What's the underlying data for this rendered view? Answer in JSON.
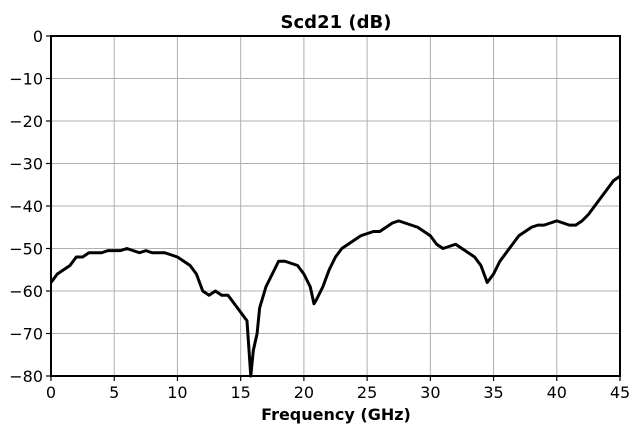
{
  "chart_data": {
    "type": "line",
    "title": "Scd21 (dB)",
    "xlabel": "Frequency (GHz)",
    "x": [
      0,
      0.5,
      1,
      1.5,
      2,
      2.5,
      3,
      3.5,
      4,
      4.5,
      5,
      5.5,
      6,
      6.5,
      7,
      7.5,
      8,
      8.5,
      9,
      9.5,
      10,
      10.5,
      11,
      11.5,
      12,
      12.5,
      13,
      13.5,
      14,
      14.5,
      15,
      15.5,
      15.8,
      16,
      16.3,
      16.5,
      17,
      17.5,
      18,
      18.5,
      19,
      19.5,
      20,
      20.5,
      20.8,
      21,
      21.5,
      22,
      22.5,
      23,
      23.5,
      24,
      24.5,
      25,
      25.5,
      26,
      26.5,
      27,
      27.5,
      28,
      28.5,
      29,
      29.5,
      30,
      30.5,
      31,
      31.5,
      32,
      32.5,
      33,
      33.5,
      34,
      34.5,
      35,
      35.5,
      36,
      36.5,
      37,
      37.5,
      38,
      38.5,
      39,
      39.5,
      40,
      40.5,
      41,
      41.5,
      42,
      42.5,
      43,
      43.5,
      44,
      44.5,
      45
    ],
    "series": [
      {
        "name": "Scd21",
        "color": "#000000",
        "values": [
          -58,
          -56,
          -55,
          -54,
          -52,
          -52,
          -51,
          -51,
          -51,
          -50.5,
          -50.5,
          -50.5,
          -50,
          -50.5,
          -51,
          -50.5,
          -51,
          -51,
          -51,
          -51.5,
          -52,
          -53,
          -54,
          -56,
          -60,
          -61,
          -60,
          -61,
          -61,
          -63,
          -65,
          -67,
          -80,
          -74,
          -70,
          -64,
          -59,
          -56,
          -53,
          -53,
          -53.5,
          -54,
          -56,
          -59,
          -63,
          -62,
          -59,
          -55,
          -52,
          -50,
          -49,
          -48,
          -47,
          -46.5,
          -46,
          -46,
          -45,
          -44,
          -43.5,
          -44,
          -44.5,
          -45,
          -46,
          -47,
          -49,
          -50,
          -49.5,
          -49,
          -50,
          -51,
          -52,
          -54,
          -58,
          -56,
          -53,
          -51,
          -49,
          -47,
          -46,
          -45,
          -44.5,
          -44.5,
          -44,
          -43.5,
          -44,
          -44.5,
          -44.5,
          -43.5,
          -42,
          -40,
          -38,
          -36,
          -34,
          -33
        ]
      }
    ],
    "xlim": [
      0,
      45
    ],
    "xticks": [
      0,
      5,
      10,
      15,
      20,
      25,
      30,
      35,
      40,
      45
    ],
    "ylim": [
      -80,
      0
    ],
    "yticks": [
      {
        "value": -80,
        "label": "−80"
      },
      {
        "value": -70,
        "label": "−70"
      },
      {
        "value": -60,
        "label": "−60"
      },
      {
        "value": -50,
        "label": "−50"
      },
      {
        "value": -40,
        "label": "−40"
      },
      {
        "value": -30,
        "label": "−30"
      },
      {
        "value": -20,
        "label": "−20"
      },
      {
        "value": -10,
        "label": "−10"
      },
      0
    ],
    "grid": true
  }
}
